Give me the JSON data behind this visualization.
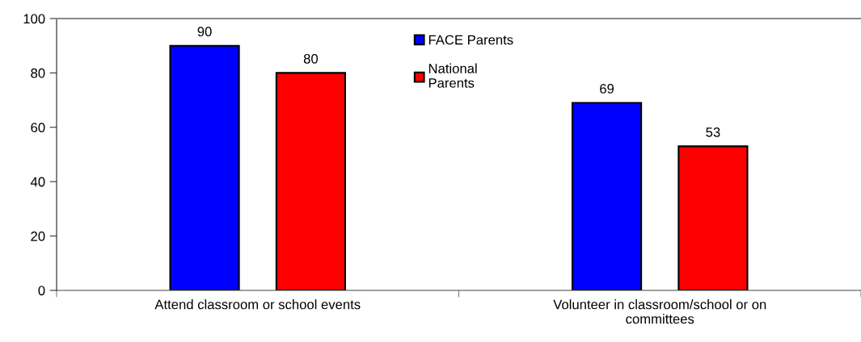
{
  "chart_data": {
    "type": "bar",
    "categories": [
      "Attend classroom or school events",
      "Volunteer in classroom/school or on\ncommittees"
    ],
    "series": [
      {
        "name": "FACE Parents",
        "color": "#0000ff",
        "values": [
          90,
          69
        ]
      },
      {
        "name": "National\nParents",
        "color": "#ff0000",
        "values": [
          80,
          53
        ]
      }
    ],
    "ylim": [
      0,
      100
    ],
    "yticks": [
      0,
      20,
      40,
      60,
      80,
      100
    ],
    "data_labels": true,
    "grid": false,
    "legend": "top"
  }
}
